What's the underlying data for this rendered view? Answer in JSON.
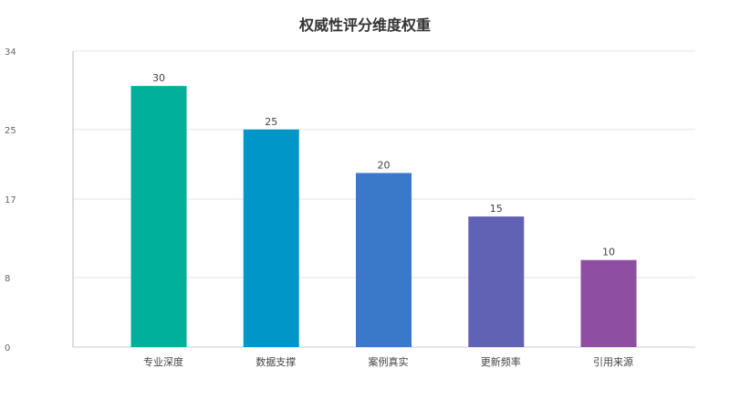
{
  "chart_data": {
    "type": "bar",
    "title": "权威性评分维度权重",
    "xlabel": "",
    "ylabel": "",
    "categories": [
      "专业深度",
      "数据支撑",
      "案例真实",
      "更新频率",
      "引用来源"
    ],
    "values": [
      30,
      25,
      20,
      15,
      10
    ],
    "yticks": [
      "0",
      "8",
      "17",
      "25",
      "34"
    ],
    "ylim": [
      0,
      34
    ],
    "grid": true,
    "legend": "none",
    "colors": [
      "#00b09b",
      "#0096c7",
      "#3a78c9",
      "#6262b5",
      "#8e4fa3"
    ]
  }
}
